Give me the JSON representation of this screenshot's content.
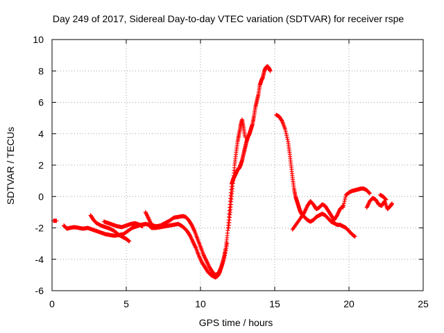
{
  "chart_data": {
    "type": "scatter",
    "title": "Day 249 of 2017, Sidereal Day-to-day VTEC variation (SDTVAR) for receiver rspe",
    "xlabel": "GPS time / hours",
    "ylabel": "SDTVAR / TECUs",
    "xlim": [
      0,
      25
    ],
    "ylim": [
      -6,
      10
    ],
    "xticks": [
      "0",
      "5",
      "10",
      "15",
      "20",
      "25"
    ],
    "yticks": [
      "-6",
      "-4",
      "-2",
      "0",
      "2",
      "4",
      "6",
      "8",
      "10"
    ],
    "grid": true,
    "marker": "+",
    "colors": {
      "series": "#ff0000",
      "grid": "#a0a0a0",
      "axis": "#000000"
    },
    "series": [
      {
        "name": "SDTVAR",
        "segments": [
          {
            "x": [
              0.1,
              0.3
            ],
            "y": [
              -1.55,
              -1.55
            ]
          },
          {
            "x": [
              0.8,
              1.0,
              1.2,
              1.5,
              1.8,
              2.1,
              2.4,
              2.7,
              3.0,
              3.3,
              3.6,
              3.9,
              4.2,
              4.5,
              4.8,
              5.1,
              5.4,
              5.7,
              6.0,
              6.3,
              6.5,
              6.7,
              7.0,
              7.3,
              7.6,
              7.9,
              8.2,
              8.5,
              8.7,
              8.9,
              9.1,
              9.3,
              9.5,
              9.7,
              9.9,
              10.1,
              10.3,
              10.5,
              10.7,
              10.9,
              11.0,
              11.1,
              11.2,
              11.3,
              11.4,
              11.5,
              11.6,
              11.7,
              11.8,
              11.9,
              12.0,
              12.1,
              12.2,
              12.3,
              12.4,
              12.5,
              12.6,
              12.7,
              12.8,
              12.9,
              13.0,
              13.1,
              13.2,
              13.3,
              13.4,
              13.5,
              13.6,
              13.7,
              13.8,
              13.9,
              14.0,
              14.1,
              14.2,
              14.3,
              14.4,
              14.5,
              14.6,
              14.7
            ],
            "y": [
              -1.85,
              -2.05,
              -2.0,
              -1.95,
              -2.0,
              -2.05,
              -2.0,
              -2.1,
              -2.2,
              -2.3,
              -2.4,
              -2.45,
              -2.5,
              -2.45,
              -2.4,
              -2.2,
              -2.0,
              -1.9,
              -1.8,
              -1.75,
              -1.8,
              -2.0,
              -2.0,
              -1.95,
              -1.9,
              -1.85,
              -1.8,
              -1.75,
              -1.85,
              -2.0,
              -2.2,
              -2.5,
              -2.9,
              -3.3,
              -3.8,
              -4.2,
              -4.5,
              -4.8,
              -5.0,
              -5.1,
              -5.15,
              -5.1,
              -5.0,
              -4.8,
              -4.5,
              -4.2,
              -3.8,
              -3.3,
              -2.5,
              -1.5,
              -0.3,
              0.8,
              1.1,
              1.3,
              1.5,
              1.7,
              1.8,
              2.0,
              2.3,
              2.7,
              3.1,
              3.5,
              3.8,
              4.0,
              4.3,
              4.6,
              5.1,
              5.7,
              6.1,
              6.5,
              7.1,
              7.4,
              7.6,
              8.0,
              8.2,
              8.3,
              8.2,
              8.0
            ]
          },
          {
            "x": [
              11.9,
              12.0,
              12.1,
              12.2,
              12.3,
              12.4,
              12.5,
              12.6,
              12.7,
              12.8,
              12.9,
              13.0
            ],
            "y": [
              -2.0,
              -1.0,
              0.0,
              1.0,
              2.0,
              2.8,
              3.5,
              4.0,
              4.5,
              4.9,
              4.4,
              3.8
            ]
          },
          {
            "x": [
              2.6,
              2.8,
              3.0,
              3.3,
              3.6,
              3.9,
              4.2,
              4.5,
              4.8,
              5.0,
              5.2
            ],
            "y": [
              -1.2,
              -1.5,
              -1.7,
              -1.85,
              -1.95,
              -2.05,
              -2.2,
              -2.45,
              -2.6,
              -2.7,
              -2.85
            ]
          },
          {
            "x": [
              3.5,
              3.8,
              4.1,
              4.4,
              4.7,
              5.0,
              5.3,
              5.6,
              5.9,
              6.1
            ],
            "y": [
              -1.6,
              -1.7,
              -1.8,
              -1.9,
              -1.95,
              -1.85,
              -1.75,
              -1.7,
              -1.8,
              -1.9
            ]
          },
          {
            "x": [
              6.3,
              6.5,
              6.7,
              7.0,
              7.3,
              7.6,
              7.9,
              8.2,
              8.5,
              8.8,
              9.0,
              9.2,
              9.4,
              9.6,
              9.8,
              10.0,
              10.2,
              10.4,
              10.6,
              10.8,
              11.0,
              11.2,
              11.4,
              11.6,
              11.8
            ],
            "y": [
              -1.0,
              -1.4,
              -1.8,
              -1.9,
              -1.85,
              -1.7,
              -1.55,
              -1.35,
              -1.3,
              -1.25,
              -1.3,
              -1.5,
              -1.8,
              -2.2,
              -2.7,
              -3.2,
              -3.7,
              -4.1,
              -4.5,
              -4.8,
              -5.0,
              -4.9,
              -4.5,
              -3.9,
              -3.0
            ]
          },
          {
            "x": [
              15.1,
              15.3,
              15.5,
              15.7,
              15.9,
              16.0,
              16.1,
              16.2,
              16.3,
              16.4,
              16.5,
              16.6,
              16.7,
              16.8,
              17.0,
              17.2,
              17.4,
              17.6,
              17.8,
              18.0,
              18.2,
              18.4,
              18.6,
              18.8,
              19.0,
              19.2,
              19.4,
              19.6,
              19.8,
              20.0,
              20.2,
              20.4
            ],
            "y": [
              5.2,
              5.1,
              4.8,
              4.3,
              3.5,
              2.8,
              2.0,
              1.2,
              0.5,
              0.0,
              -0.3,
              -0.6,
              -0.9,
              -1.1,
              -1.3,
              -1.5,
              -1.6,
              -1.5,
              -1.3,
              -1.2,
              -1.1,
              -1.2,
              -1.4,
              -1.6,
              -1.7,
              -1.8,
              -1.8,
              -1.9,
              -2.0,
              -2.2,
              -2.4,
              -2.55
            ]
          },
          {
            "x": [
              16.2,
              16.5,
              16.8,
              17.0,
              17.2,
              17.4,
              17.6,
              17.8,
              18.0,
              18.2,
              18.4,
              18.6,
              18.8,
              19.0,
              19.2,
              19.4,
              19.6
            ],
            "y": [
              -2.1,
              -1.7,
              -1.3,
              -1.0,
              -0.6,
              -0.3,
              -0.5,
              -0.8,
              -0.7,
              -0.5,
              -0.6,
              -0.9,
              -1.2,
              -1.5,
              -1.2,
              -0.8,
              -0.6
            ]
          },
          {
            "x": [
              19.6,
              19.8,
              20.0,
              20.2,
              20.4,
              20.6,
              20.8,
              21.0,
              21.2,
              21.4
            ],
            "y": [
              -0.7,
              0.1,
              0.25,
              0.35,
              0.4,
              0.45,
              0.5,
              0.5,
              0.4,
              0.2
            ]
          },
          {
            "x": [
              21.2,
              21.4,
              21.6,
              21.8,
              22.0,
              22.2,
              22.4,
              22.6,
              22.8,
              22.9
            ],
            "y": [
              -0.7,
              -0.3,
              -0.1,
              -0.2,
              -0.5,
              -0.6,
              -0.3,
              -0.8,
              -0.6,
              -0.45
            ]
          },
          {
            "x": [
              22.1,
              22.3,
              22.5
            ],
            "y": [
              0.1,
              0.0,
              -0.2
            ]
          }
        ]
      }
    ]
  }
}
